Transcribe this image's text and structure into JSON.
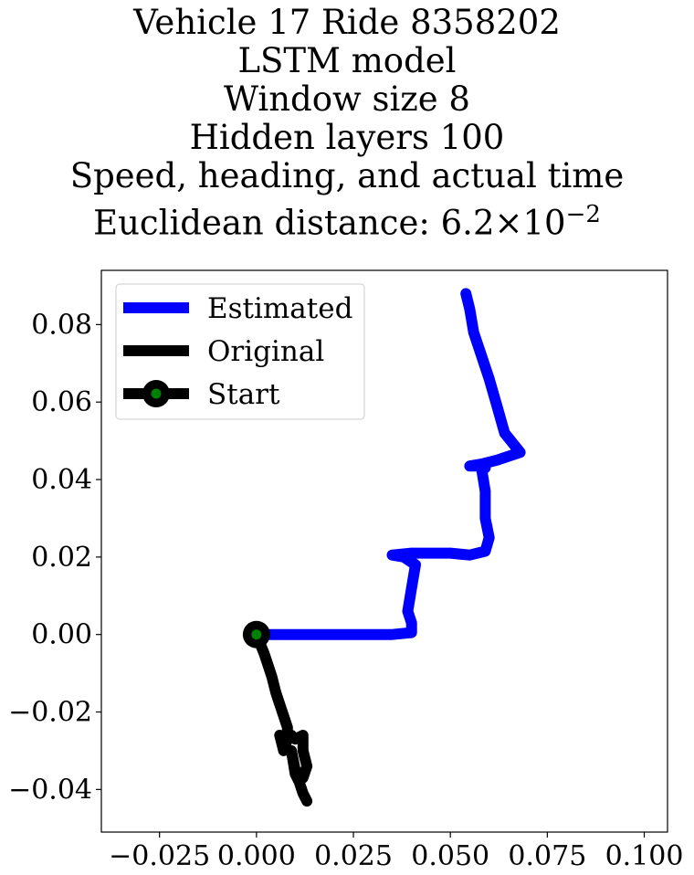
{
  "chart_data": {
    "type": "line",
    "title_lines": [
      "Vehicle 17 Ride 8358202",
      "LSTM model",
      "Window size 8",
      "Hidden layers 100",
      "Speed, heading, and actual time"
    ],
    "title_distance_prefix": "Euclidean distance: ",
    "title_distance_mantissa": "6.2",
    "title_distance_times": "×",
    "title_distance_base": "10",
    "title_distance_exponent": "−2",
    "xlim": [
      -0.04,
      0.106
    ],
    "ylim": [
      -0.051,
      0.094
    ],
    "x_ticks": [
      -0.025,
      0.0,
      0.025,
      0.05,
      0.075,
      0.1
    ],
    "x_tick_labels": [
      "−0.025",
      "0.000",
      "0.025",
      "0.050",
      "0.075",
      "0.100"
    ],
    "y_ticks": [
      -0.04,
      -0.02,
      0.0,
      0.02,
      0.04,
      0.06,
      0.08
    ],
    "y_tick_labels": [
      "−0.04",
      "−0.02",
      "0.00",
      "0.02",
      "0.04",
      "0.06",
      "0.08"
    ],
    "legend_position": "upper-left",
    "series": [
      {
        "name": "Estimated",
        "color": "#0000ff",
        "x": [
          0.0,
          0.005,
          0.01,
          0.015,
          0.02,
          0.025,
          0.03,
          0.035,
          0.04,
          0.04,
          0.039,
          0.04,
          0.041,
          0.038,
          0.035,
          0.04,
          0.045,
          0.05,
          0.055,
          0.059,
          0.06,
          0.059,
          0.059,
          0.058,
          0.059,
          0.058,
          0.055,
          0.058,
          0.062,
          0.068,
          0.064,
          0.062,
          0.06,
          0.058,
          0.056,
          0.055,
          0.054
        ],
        "y": [
          0.0,
          0.0,
          0.0,
          0.0,
          0.0,
          0.0,
          0.0,
          0.0,
          0.0005,
          0.003,
          0.006,
          0.012,
          0.018,
          0.02,
          0.0205,
          0.021,
          0.021,
          0.021,
          0.0205,
          0.0215,
          0.025,
          0.03,
          0.037,
          0.043,
          0.043,
          0.0435,
          0.0435,
          0.044,
          0.045,
          0.047,
          0.052,
          0.059,
          0.066,
          0.072,
          0.078,
          0.084,
          0.088
        ]
      },
      {
        "name": "Original",
        "color": "#000000",
        "x": [
          0.0,
          0.002,
          0.004,
          0.005,
          0.006,
          0.007,
          0.008,
          0.008,
          0.007,
          0.006,
          0.007,
          0.009,
          0.01,
          0.012,
          0.012,
          0.013,
          0.012,
          0.01,
          0.009,
          0.01,
          0.011,
          0.012,
          0.013
        ],
        "y": [
          0.0,
          -0.005,
          -0.011,
          -0.015,
          -0.018,
          -0.021,
          -0.024,
          -0.027,
          -0.03,
          -0.026,
          -0.028,
          -0.026,
          -0.027,
          -0.026,
          -0.03,
          -0.034,
          -0.037,
          -0.035,
          -0.03,
          -0.036,
          -0.038,
          -0.041,
          -0.043
        ]
      }
    ],
    "start_point": {
      "name": "Start",
      "x": 0.0,
      "y": 0.0,
      "color": "#000000",
      "fill": "#008000"
    }
  }
}
